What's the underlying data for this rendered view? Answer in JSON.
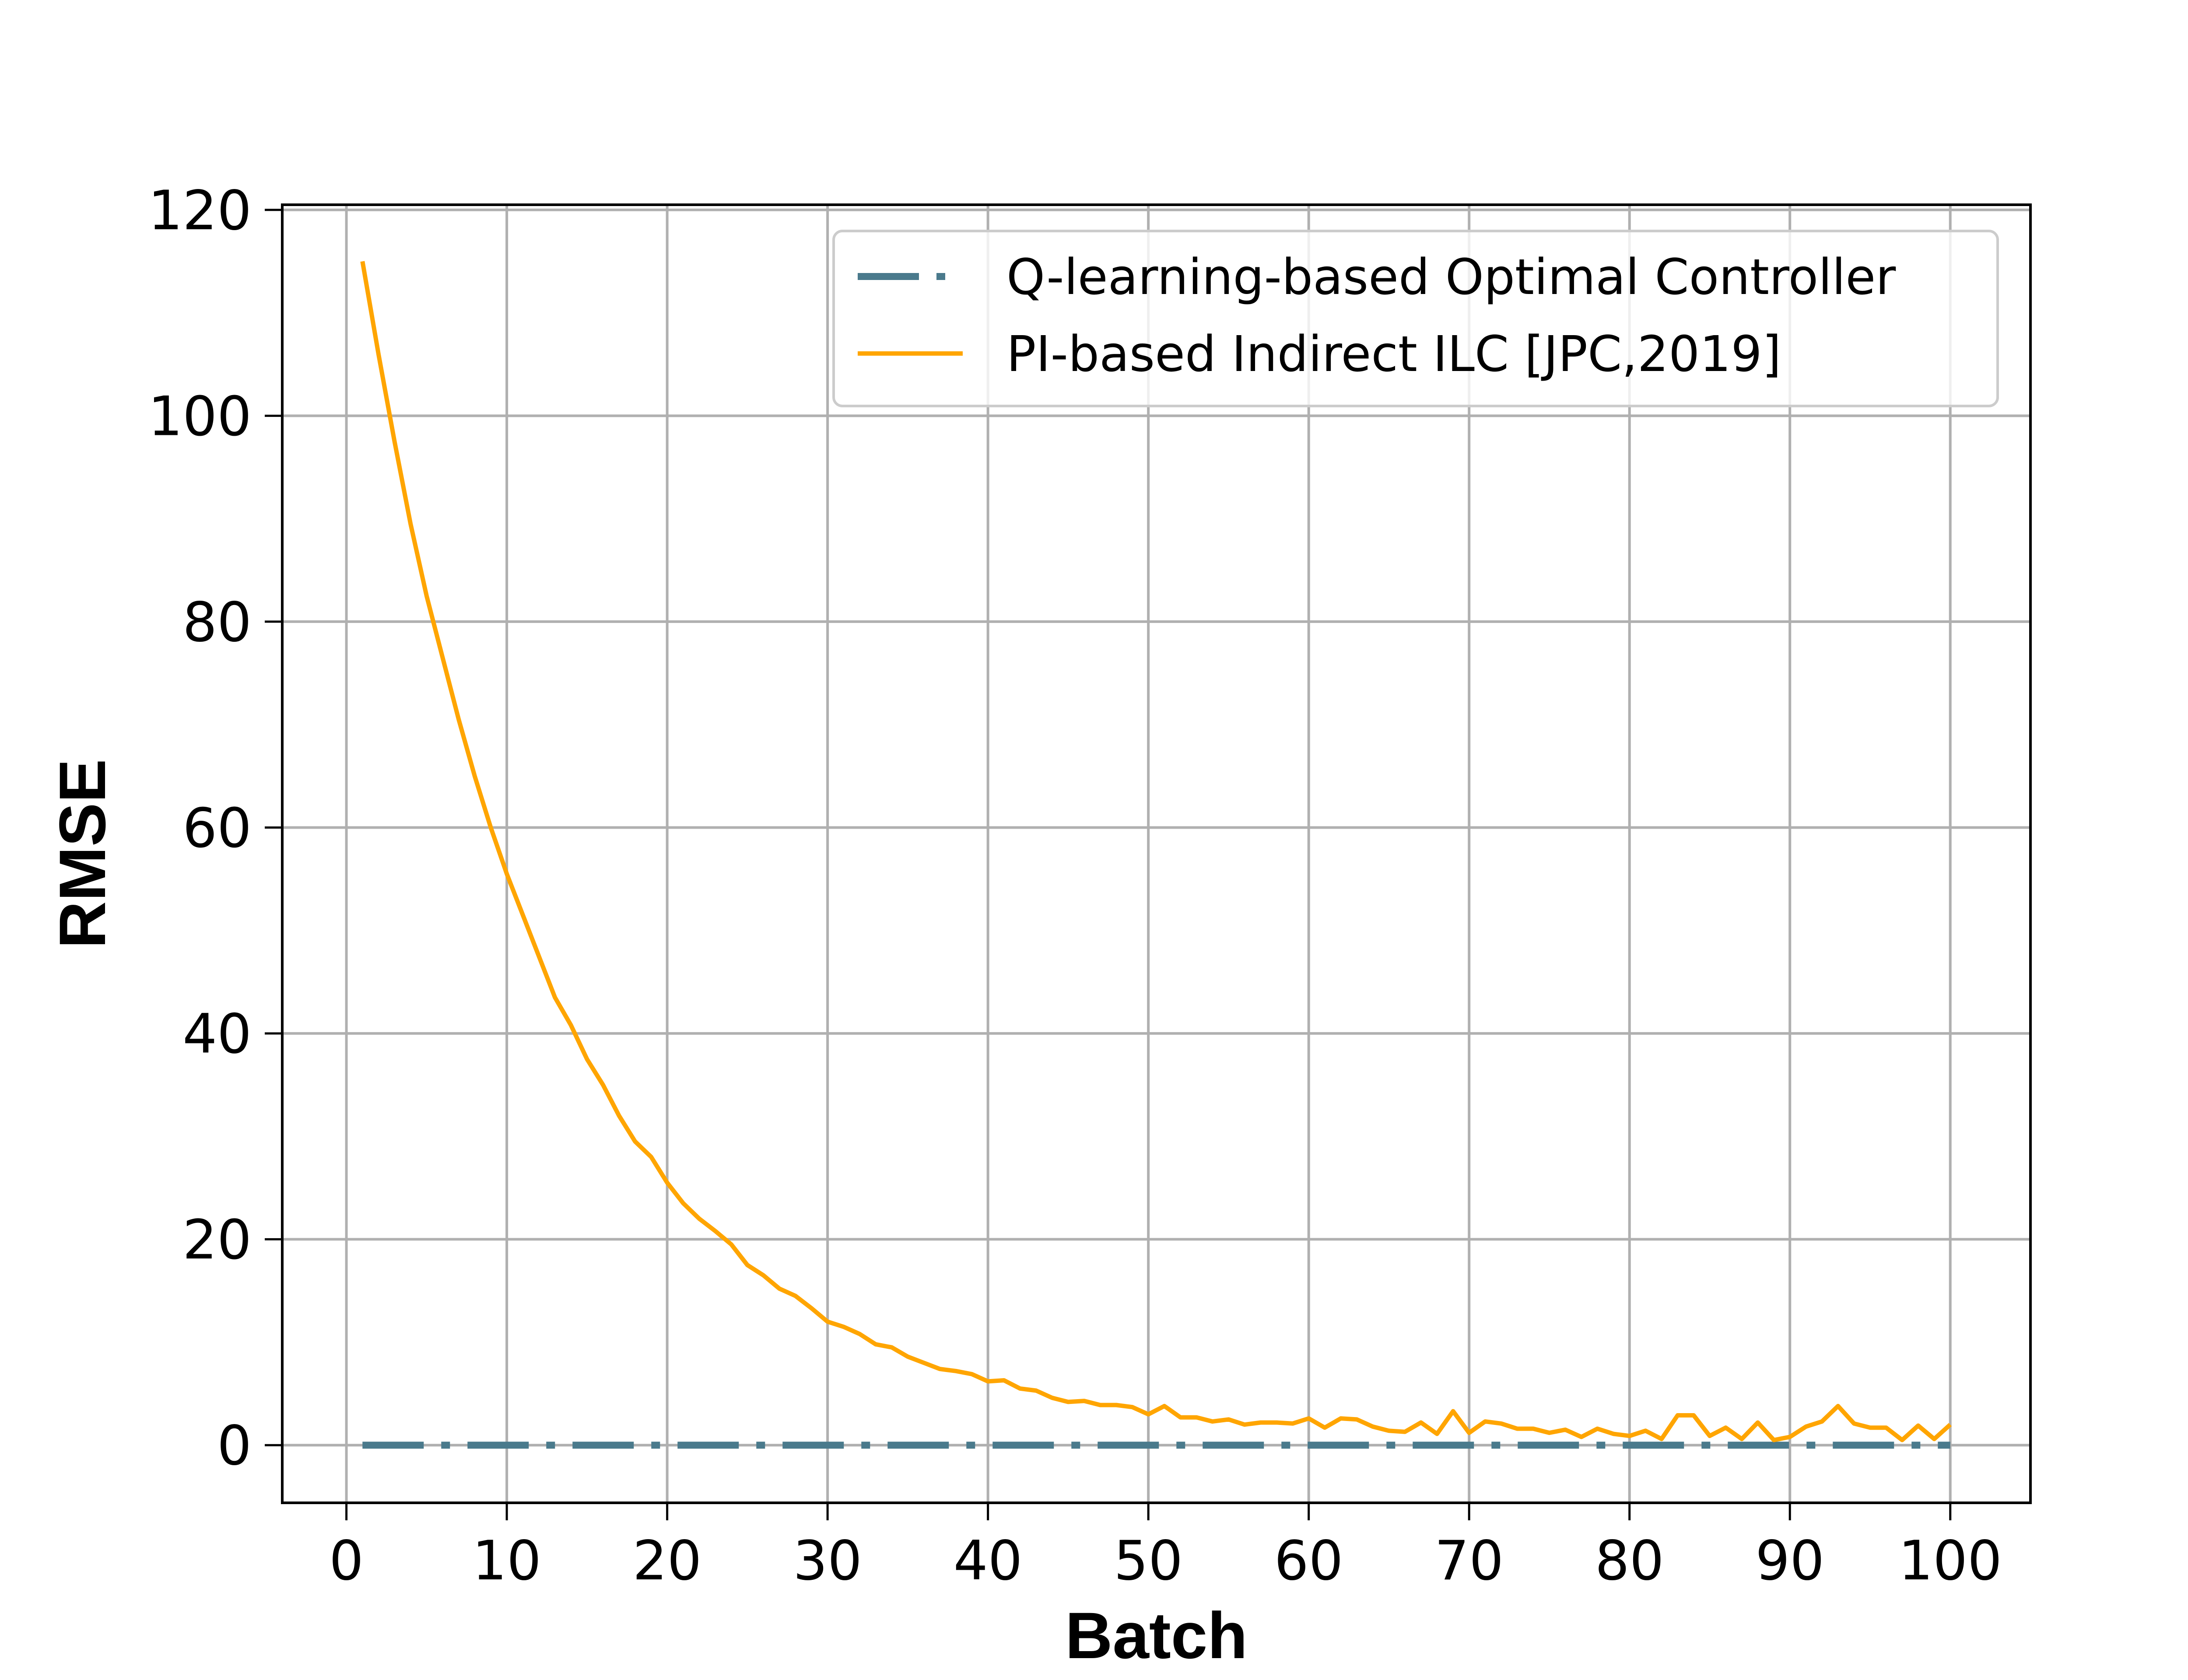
{
  "chart_data": {
    "type": "line",
    "xlabel": "Batch",
    "ylabel": "RMSE",
    "xlim": [
      -4,
      105
    ],
    "ylim": [
      -5.6,
      120.5
    ],
    "xticks": [
      0,
      10,
      20,
      30,
      40,
      50,
      60,
      70,
      80,
      90,
      100
    ],
    "yticks": [
      0,
      20,
      40,
      60,
      80,
      100,
      120
    ],
    "grid": true,
    "legend_position": "top-right",
    "series": [
      {
        "name": "Q-learning-based Optimal Controller",
        "color": "#4a7a8c",
        "line_style": "dash-dot",
        "x": [
          1,
          100
        ],
        "y": [
          0,
          0
        ]
      },
      {
        "name": "PI-based Indirect ILC [JPC,2019]",
        "color": "#ffa500",
        "line_style": "solid",
        "x": [
          1,
          2,
          3,
          4,
          5,
          6,
          7,
          8,
          9,
          10,
          11,
          12,
          13,
          14,
          15,
          16,
          17,
          18,
          19,
          20,
          21,
          22,
          23,
          24,
          25,
          26,
          27,
          28,
          29,
          30,
          31,
          32,
          33,
          34,
          35,
          36,
          37,
          38,
          39,
          40,
          41,
          42,
          43,
          44,
          45,
          46,
          47,
          48,
          49,
          50,
          51,
          52,
          53,
          54,
          55,
          56,
          57,
          58,
          59,
          60,
          61,
          62,
          63,
          64,
          65,
          66,
          67,
          68,
          69,
          70,
          71,
          72,
          73,
          74,
          75,
          76,
          77,
          78,
          79,
          80,
          81,
          82,
          83,
          84,
          85,
          86,
          87,
          88,
          89,
          90,
          91,
          92,
          93,
          94,
          95,
          96,
          97,
          98,
          99,
          100
        ],
        "y": [
          115,
          106,
          97.5,
          89.5,
          82.5,
          76.5,
          70.5,
          65,
          60,
          55.5,
          51.5,
          47.5,
          43.5,
          40.8,
          37.5,
          35,
          32,
          29.5,
          28,
          25.5,
          23.5,
          22,
          20.8,
          19.5,
          17.5,
          16.5,
          15.2,
          14.5,
          13.3,
          12,
          11.5,
          10.8,
          9.8,
          9.5,
          8.6,
          8,
          7.4,
          7.2,
          6.9,
          6.2,
          6.3,
          5.5,
          5.3,
          4.6,
          4.2,
          4.3,
          3.9,
          3.9,
          3.7,
          3,
          3.8,
          2.7,
          2.7,
          2.3,
          2.5,
          2,
          2.2,
          2.2,
          2.1,
          2.6,
          1.7,
          2.6,
          2.5,
          1.8,
          1.4,
          1.3,
          2.2,
          1.1,
          3.3,
          1.2,
          2.3,
          2.1,
          1.6,
          1.6,
          1.2,
          1.5,
          0.8,
          1.6,
          1.1,
          0.9,
          1.4,
          0.6,
          2.9,
          2.9,
          0.9,
          1.7,
          0.6,
          2.2,
          0.5,
          0.8,
          1.8,
          2.3,
          3.8,
          2.1,
          1.7,
          1.7,
          0.5,
          1.9,
          0.6,
          2
        ]
      }
    ]
  }
}
